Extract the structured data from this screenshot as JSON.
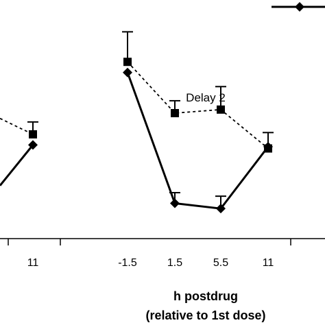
{
  "chart_data": {
    "type": "line",
    "title": "",
    "xlabel": "h postdrug",
    "xlabel_sub": "(relative to 1st dose)",
    "ylabel": "",
    "grid": false,
    "legend": "top-right",
    "colors": {
      "line": "#000000",
      "background": "#ffffff"
    },
    "panels": [
      {
        "name": "",
        "categories": [
          "11"
        ],
        "series": [
          {
            "marker": "square",
            "line_style": "dotted",
            "x": [
              "11"
            ],
            "y": [
              4.4
            ],
            "error": [
              0.7
            ]
          },
          {
            "marker": "diamond",
            "line_style": "solid",
            "x": [
              "11"
            ],
            "y": [
              3.8
            ],
            "error": [
              0
            ]
          }
        ],
        "partial_left_segment": true
      },
      {
        "name": "Delay 2",
        "categories": [
          "-1.5",
          "1.5",
          "5.5",
          "11"
        ],
        "series": [
          {
            "marker": "square",
            "line_style": "dotted",
            "x": [
              "-1.5",
              "1.5",
              "5.5",
              "11"
            ],
            "y": [
              8.5,
              5.6,
              5.8,
              3.6
            ],
            "error": [
              1.7,
              0.7,
              1.3,
              0.9
            ]
          },
          {
            "marker": "diamond",
            "line_style": "solid",
            "x": [
              "-1.5",
              "1.5",
              "5.5",
              "11"
            ],
            "y": [
              7.9,
              0.5,
              0.2,
              3.7
            ],
            "error": [
              0,
              0.6,
              0.7,
              0
            ]
          }
        ]
      }
    ],
    "ylim": [
      -1.5,
      12
    ]
  }
}
